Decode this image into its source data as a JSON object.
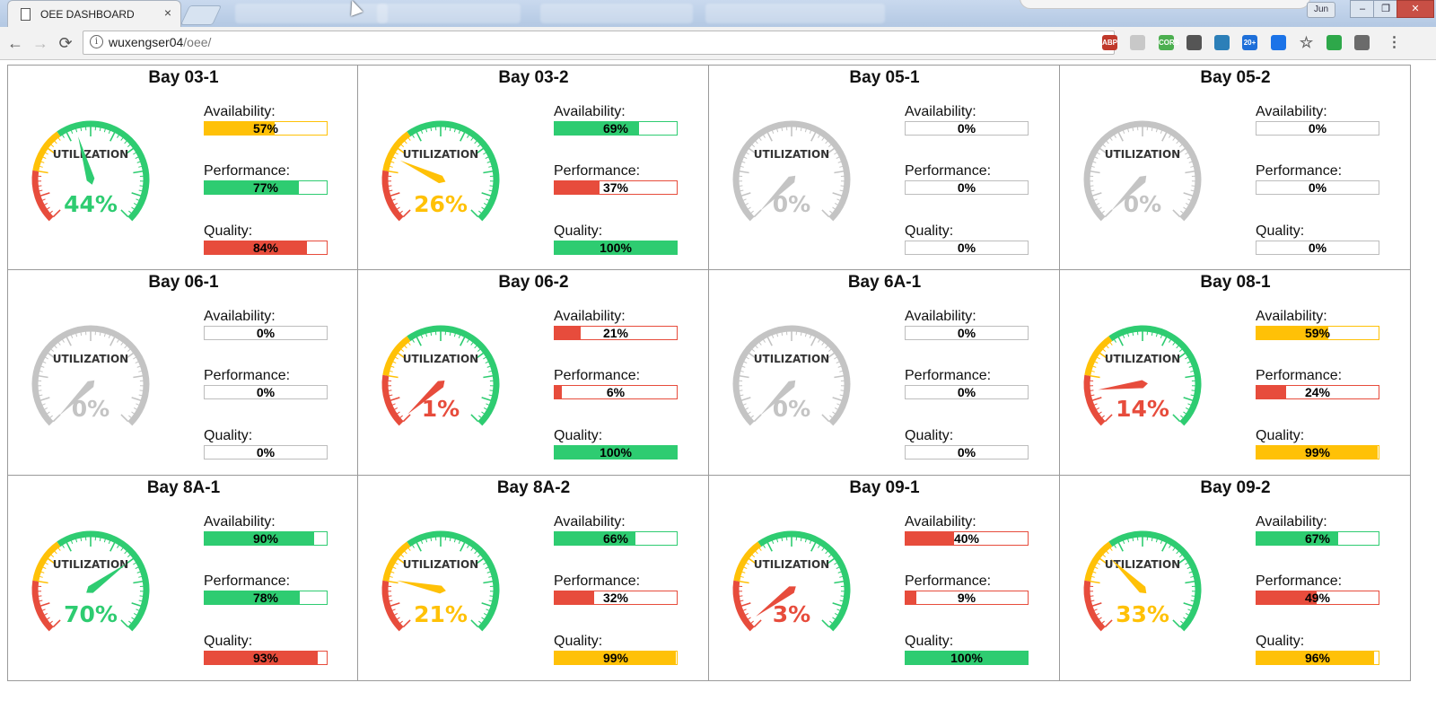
{
  "browser": {
    "tab_title": "OEE DASHBOARD",
    "tab_close": "×",
    "address_host": "wuxengser04",
    "address_path": "/oee/",
    "user_chip": "Jun",
    "window_buttons": {
      "minimize": "–",
      "maximize": "❐",
      "close": "✕"
    },
    "nav": {
      "back": "←",
      "forward": "→",
      "reload": "⟳"
    },
    "extensions": [
      {
        "name": "abp",
        "label": "ABP",
        "color": "#c0392b"
      },
      {
        "name": "ext-2",
        "label": "",
        "color": "#c8c8c8"
      },
      {
        "name": "cors",
        "label": "CORS",
        "color": "#4caf50"
      },
      {
        "name": "ext-4",
        "label": "",
        "color": "#555555"
      },
      {
        "name": "ext-5",
        "label": "",
        "color": "#2c7fb8"
      },
      {
        "name": "ext-6",
        "label": "20+",
        "color": "#1e6fd9"
      },
      {
        "name": "ext-7",
        "label": "",
        "color": "#1b73e8"
      },
      {
        "name": "bookmark-star",
        "label": "",
        "color": "#777777"
      },
      {
        "name": "wechat",
        "label": "",
        "color": "#2ea84a"
      },
      {
        "name": "ext-10",
        "label": "",
        "color": "#6b6b6b"
      },
      {
        "name": "menu",
        "label": "",
        "color": "#555555"
      }
    ]
  },
  "colors": {
    "green": "#2ecc71",
    "yellow": "#ffc107",
    "red": "#e74c3c",
    "gray": "#c4c4c4"
  },
  "labels": {
    "gauge_caption": "UTILIZATION",
    "availability": "Availability:",
    "performance": "Performance:",
    "quality": "Quality:"
  },
  "bays": [
    {
      "name": "Bay 03-1",
      "utilization": 44,
      "util_text": "44%",
      "availability": 57,
      "performance": 77,
      "quality": 84
    },
    {
      "name": "Bay 03-2",
      "utilization": 26,
      "util_text": "26%",
      "availability": 69,
      "performance": 37,
      "quality": 100
    },
    {
      "name": "Bay 05-1",
      "utilization": 0,
      "util_text": "0%",
      "availability": 0,
      "performance": 0,
      "quality": 0
    },
    {
      "name": "Bay 05-2",
      "utilization": 0,
      "util_text": "0%",
      "availability": 0,
      "performance": 0,
      "quality": 0
    },
    {
      "name": "Bay 06-1",
      "utilization": 0,
      "util_text": "0%",
      "availability": 0,
      "performance": 0,
      "quality": 0
    },
    {
      "name": "Bay 06-2",
      "utilization": 1,
      "util_text": "1%",
      "availability": 21,
      "performance": 6,
      "quality": 100
    },
    {
      "name": "Bay 6A-1",
      "utilization": 0,
      "util_text": "0%",
      "availability": 0,
      "performance": 0,
      "quality": 0
    },
    {
      "name": "Bay 08-1",
      "utilization": 14,
      "util_text": "14%",
      "availability": 59,
      "performance": 24,
      "quality": 99
    },
    {
      "name": "Bay 8A-1",
      "utilization": 70,
      "util_text": "70%",
      "availability": 90,
      "performance": 78,
      "quality": 93
    },
    {
      "name": "Bay 8A-2",
      "utilization": 21,
      "util_text": "21%",
      "availability": 66,
      "performance": 32,
      "quality": 99
    },
    {
      "name": "Bay 09-1",
      "utilization": 3,
      "util_text": "3%",
      "availability": 40,
      "performance": 9,
      "quality": 100
    },
    {
      "name": "Bay 09-2",
      "utilization": 33,
      "util_text": "33%",
      "availability": 67,
      "performance": 49,
      "quality": 96
    }
  ]
}
